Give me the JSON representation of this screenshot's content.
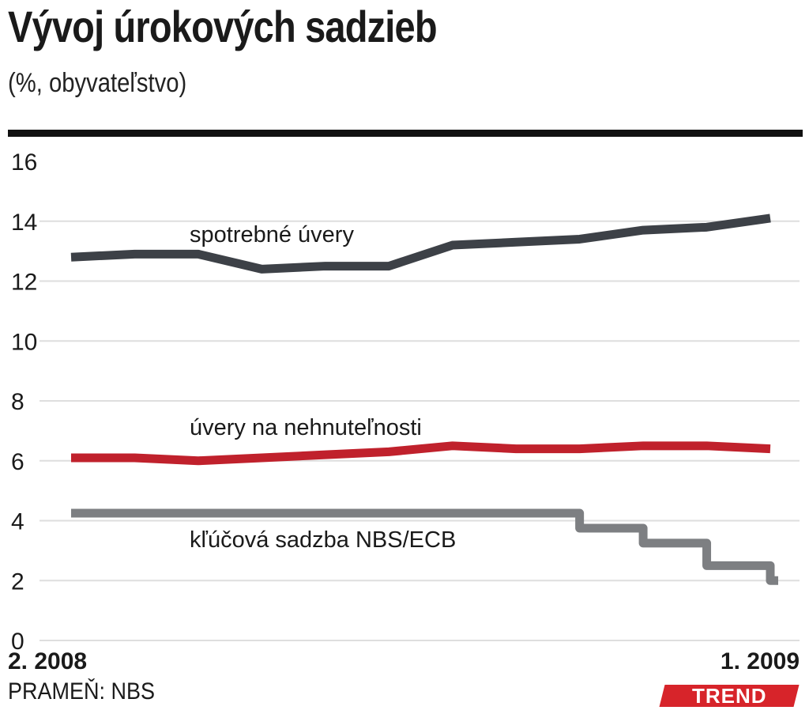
{
  "header": {
    "title": "Vývoj úrokových sadzieb",
    "subtitle": "(%, obyvateľstvo)"
  },
  "footer": {
    "source": "PRAMEŇ: NBS",
    "logo_text": "TREND"
  },
  "chart_data": {
    "type": "line",
    "title": "Vývoj úrokových sadzieb",
    "subtitle": "(%, obyvateľstvo)",
    "ylim": [
      0,
      16
    ],
    "y_ticks": [
      "0",
      "2",
      "4",
      "6",
      "8",
      "10",
      "12",
      "14",
      "16"
    ],
    "x_tick_labels": {
      "start": "2. 2008",
      "end": "1. 2009"
    },
    "grid": "horizontal",
    "x": [
      0,
      1,
      2,
      3,
      4,
      5,
      6,
      7,
      8,
      9,
      10,
      11,
      12
    ],
    "series": [
      {
        "name": "spotrebné úvery",
        "color": "#3d4147",
        "step": false,
        "values": [
          12.8,
          12.9,
          12.9,
          12.4,
          12.5,
          12.5,
          13.2,
          13.3,
          13.4,
          13.7,
          13.8,
          14.1
        ],
        "x": [
          0,
          1,
          2,
          3,
          4,
          5,
          6,
          7,
          8,
          9,
          10,
          11
        ]
      },
      {
        "name": "úvery na nehnuteľnosti",
        "color": "#c0212c",
        "step": false,
        "values": [
          6.1,
          6.1,
          6.0,
          6.1,
          6.2,
          6.3,
          6.5,
          6.4,
          6.4,
          6.5,
          6.5,
          6.4
        ],
        "x": [
          0,
          1,
          2,
          3,
          4,
          5,
          6,
          7,
          8,
          9,
          10,
          11
        ]
      },
      {
        "name": "kľúčová sadzba NBS/ECB",
        "color": "#7d7f82",
        "step": true,
        "values": [
          4.25,
          4.25,
          4.25,
          4.25,
          4.25,
          4.25,
          4.25,
          4.25,
          3.75,
          3.25,
          2.5,
          2.0
        ],
        "x": [
          0,
          1,
          2,
          3,
          4,
          5,
          6,
          7,
          8,
          9,
          10,
          11
        ]
      }
    ]
  }
}
